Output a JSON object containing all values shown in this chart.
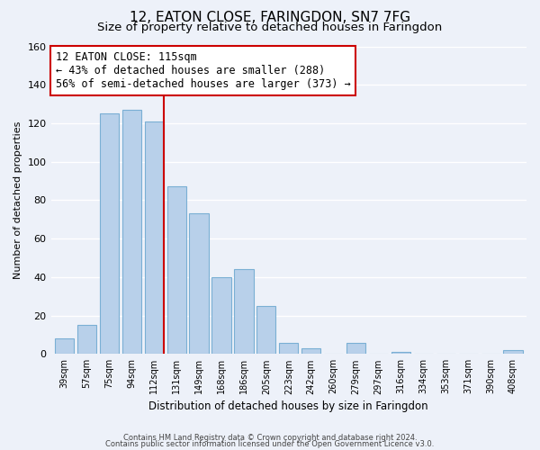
{
  "title": "12, EATON CLOSE, FARINGDON, SN7 7FG",
  "subtitle": "Size of property relative to detached houses in Faringdon",
  "xlabel": "Distribution of detached houses by size in Faringdon",
  "ylabel": "Number of detached properties",
  "bar_labels": [
    "39sqm",
    "57sqm",
    "75sqm",
    "94sqm",
    "112sqm",
    "131sqm",
    "149sqm",
    "168sqm",
    "186sqm",
    "205sqm",
    "223sqm",
    "242sqm",
    "260sqm",
    "279sqm",
    "297sqm",
    "316sqm",
    "334sqm",
    "353sqm",
    "371sqm",
    "390sqm",
    "408sqm"
  ],
  "bar_values": [
    8,
    15,
    125,
    127,
    121,
    87,
    73,
    40,
    44,
    25,
    6,
    3,
    0,
    6,
    0,
    1,
    0,
    0,
    0,
    0,
    2
  ],
  "bar_color": "#b8d0ea",
  "bar_edge_color": "#7aafd4",
  "vline_x_index": 4,
  "vline_color": "#cc0000",
  "ylim": [
    0,
    160
  ],
  "yticks": [
    0,
    20,
    40,
    60,
    80,
    100,
    120,
    140,
    160
  ],
  "annotation_line1": "12 EATON CLOSE: 115sqm",
  "annotation_line2": "← 43% of detached houses are smaller (288)",
  "annotation_line3": "56% of semi-detached houses are larger (373) →",
  "footer_line1": "Contains HM Land Registry data © Crown copyright and database right 2024.",
  "footer_line2": "Contains public sector information licensed under the Open Government Licence v3.0.",
  "bg_color": "#edf1f9",
  "grid_color": "#ffffff",
  "title_fontsize": 11,
  "subtitle_fontsize": 9.5,
  "xlabel_fontsize": 8.5,
  "ylabel_fontsize": 8,
  "annot_fontsize": 8.5,
  "footer_fontsize": 6
}
